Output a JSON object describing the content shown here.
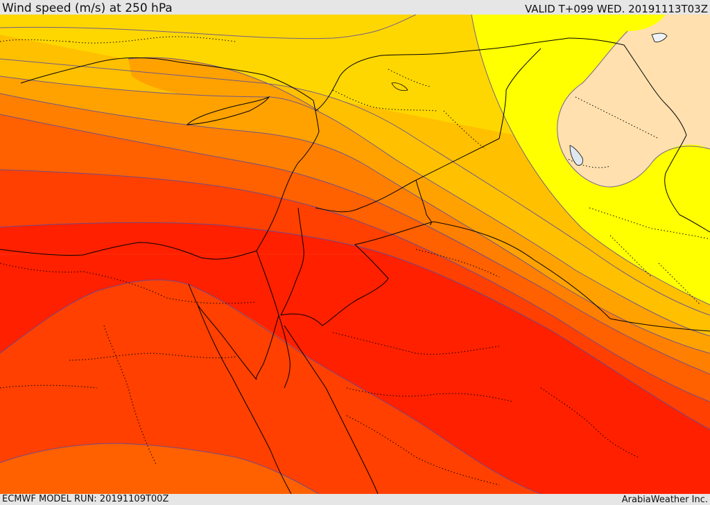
{
  "header": {
    "title": "Wind speed (m/s) at 250 hPa",
    "valid_time": "VALID T+099 WED. 20191113T03Z"
  },
  "footer": {
    "model_run": "ECMWF MODEL RUN: 20191109T00Z",
    "credit": "ArabiaWeather Inc."
  },
  "map": {
    "variable": "wind speed",
    "level": "250 hPa",
    "colors": {
      "background_lightest": "#ffe4b0",
      "band_yellow": "#ffff00",
      "band_gold": "#ffd700",
      "band_amber": "#ffc000",
      "band_orange_light": "#ffa200",
      "band_orange": "#ff8000",
      "band_orange_dark": "#ff6000",
      "band_red_orange": "#ff4000",
      "band_red": "#ff2000",
      "contour_line": "#5a4aa0",
      "border_line": "#000000",
      "water": "#dde8f0"
    }
  }
}
